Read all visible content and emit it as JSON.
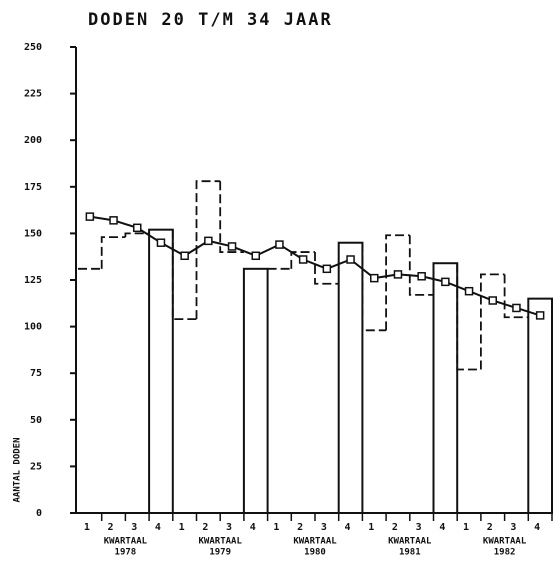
{
  "chart_data": {
    "type": "bar",
    "title": "DODEN 20 T/M 34 JAAR",
    "y_label": "AANTAL DODEN",
    "categories": [
      "1",
      "2",
      "3",
      "4",
      "1",
      "2",
      "3",
      "4",
      "1",
      "2",
      "3",
      "4",
      "1",
      "2",
      "3",
      "4",
      "1",
      "2",
      "3",
      "4"
    ],
    "groups": [
      {
        "label": "KWARTAAL",
        "year": "1978"
      },
      {
        "label": "KWARTAAL",
        "year": "1979"
      },
      {
        "label": "KWARTAAL",
        "year": "1980"
      },
      {
        "label": "KWARTAAL",
        "year": "1981"
      },
      {
        "label": "KWARTAAL",
        "year": "1982"
      }
    ],
    "series": [
      {
        "type": "step",
        "color": "#111",
        "values": [
          131,
          148,
          150,
          152,
          104,
          178,
          140,
          131,
          131,
          140,
          123,
          145,
          98,
          149,
          117,
          134,
          77,
          128,
          105,
          115
        ]
      },
      {
        "type": "line",
        "color": "#111",
        "values": [
          159,
          157,
          153,
          145,
          138,
          146,
          143,
          138,
          144,
          136,
          131,
          136,
          126,
          128,
          127,
          124,
          119,
          114,
          110,
          106
        ]
      }
    ],
    "ylim": [
      0,
      250
    ],
    "yticks": [
      0,
      25,
      50,
      75,
      100,
      125,
      150,
      175,
      200,
      225,
      250
    ]
  }
}
